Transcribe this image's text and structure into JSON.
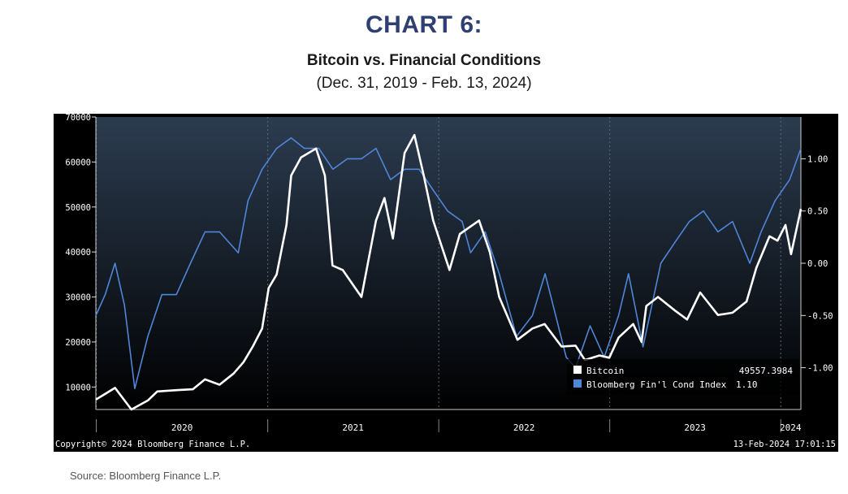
{
  "heading": "CHART 6:",
  "subtitle": "Bitcoin vs. Financial Conditions",
  "date_range": "(Dec. 31, 2019 - Feb. 13, 2024)",
  "source": "Source: Bloomberg Finance L.P.",
  "copyright": "Copyright© 2024 Bloomberg Finance L.P.",
  "timestamp": "13-Feb-2024 17:01:15",
  "colors": {
    "background": "#000000",
    "plot_gradient_top": "#2c3c50",
    "plot_gradient_bottom": "#000000",
    "bitcoin": "#ffffff",
    "fci": "#4f86d8",
    "heading": "#2e3f73"
  },
  "chart_data": {
    "type": "line",
    "title": "Bitcoin vs. Financial Conditions",
    "x_ticks": [
      "2020",
      "2021",
      "2022",
      "2023",
      "2024"
    ],
    "x_range": [
      "2019-12-31",
      "2024-02-13"
    ],
    "y_left": {
      "range": [
        5000,
        70000
      ],
      "ticks": [
        "70000",
        "60000",
        "50000",
        "40000",
        "30000",
        "20000",
        "10000"
      ]
    },
    "y_right": {
      "range": [
        -1.4,
        1.4
      ],
      "ticks": [
        "1.00",
        "0.50",
        "0.00",
        "-0.50",
        "-1.00"
      ]
    },
    "legend": {
      "placement": "bottom-right",
      "entries": [
        {
          "label": "Bitcoin",
          "value": "49557.3984"
        },
        {
          "label": "Bloomberg Fin'l Cond Index",
          "value": "1.10"
        }
      ]
    },
    "series": [
      {
        "name": "Bitcoin",
        "axis": "left",
        "x": [
          "2019-12-31",
          "2020-02-10",
          "2020-03-16",
          "2020-04-20",
          "2020-05-10",
          "2020-06-20",
          "2020-07-25",
          "2020-08-20",
          "2020-09-20",
          "2020-10-20",
          "2020-11-10",
          "2020-11-30",
          "2020-12-20",
          "2021-01-03",
          "2021-01-20",
          "2021-02-10",
          "2021-02-20",
          "2021-03-13",
          "2021-04-14",
          "2021-05-03",
          "2021-05-19",
          "2021-06-10",
          "2021-07-20",
          "2021-08-20",
          "2021-09-07",
          "2021-09-25",
          "2021-10-20",
          "2021-11-10",
          "2021-11-30",
          "2021-12-20",
          "2022-01-24",
          "2022-02-15",
          "2022-03-28",
          "2022-04-20",
          "2022-05-10",
          "2022-06-18",
          "2022-07-20",
          "2022-08-15",
          "2022-09-20",
          "2022-10-20",
          "2022-11-09",
          "2022-12-10",
          "2022-12-31",
          "2023-01-20",
          "2023-02-20",
          "2023-03-10",
          "2023-03-20",
          "2023-04-14",
          "2023-05-20",
          "2023-06-15",
          "2023-07-13",
          "2023-08-20",
          "2023-09-20",
          "2023-10-20",
          "2023-11-10",
          "2023-12-08",
          "2023-12-25",
          "2024-01-11",
          "2024-01-23",
          "2024-02-13"
        ],
        "y": [
          7200,
          9800,
          5000,
          7000,
          9000,
          9300,
          9500,
          11700,
          10500,
          13000,
          15500,
          19000,
          23000,
          32000,
          35000,
          46000,
          57000,
          61000,
          63000,
          57000,
          37000,
          36000,
          30000,
          47000,
          52000,
          43000,
          62000,
          66000,
          57000,
          47000,
          36000,
          44000,
          47000,
          40000,
          30000,
          20500,
          23000,
          24000,
          19000,
          19200,
          16000,
          17000,
          16500,
          21000,
          24000,
          20000,
          28000,
          30000,
          27000,
          25000,
          31000,
          26000,
          26500,
          29000,
          36500,
          43500,
          42500,
          46000,
          39500,
          49557
        ]
      },
      {
        "name": "Bloomberg Fin'l Cond Index",
        "axis": "right",
        "x": [
          "2019-12-31",
          "2020-01-20",
          "2020-02-10",
          "2020-03-01",
          "2020-03-23",
          "2020-04-20",
          "2020-05-20",
          "2020-06-20",
          "2020-07-20",
          "2020-08-20",
          "2020-09-20",
          "2020-10-30",
          "2020-11-20",
          "2020-12-20",
          "2021-01-20",
          "2021-02-20",
          "2021-03-20",
          "2021-04-20",
          "2021-05-20",
          "2021-06-20",
          "2021-07-20",
          "2021-08-20",
          "2021-09-20",
          "2021-10-20",
          "2021-11-20",
          "2021-12-20",
          "2022-01-20",
          "2022-02-20",
          "2022-03-10",
          "2022-04-10",
          "2022-05-10",
          "2022-06-16",
          "2022-07-20",
          "2022-08-16",
          "2022-09-30",
          "2022-10-20",
          "2022-11-20",
          "2022-12-20",
          "2023-01-20",
          "2023-02-10",
          "2023-03-13",
          "2023-04-20",
          "2023-05-20",
          "2023-06-20",
          "2023-07-20",
          "2023-08-20",
          "2023-09-20",
          "2023-10-27",
          "2023-11-20",
          "2023-12-20",
          "2024-01-20",
          "2024-02-13"
        ],
        "y": [
          -0.5,
          -0.3,
          0.0,
          -0.4,
          -1.2,
          -0.7,
          -0.3,
          -0.3,
          0.0,
          0.3,
          0.3,
          0.1,
          0.6,
          0.9,
          1.1,
          1.2,
          1.1,
          1.1,
          0.9,
          1.0,
          1.0,
          1.1,
          0.8,
          0.9,
          0.9,
          0.7,
          0.5,
          0.4,
          0.1,
          0.3,
          -0.1,
          -0.7,
          -0.5,
          -0.1,
          -0.9,
          -1.0,
          -0.6,
          -0.9,
          -0.5,
          -0.1,
          -0.8,
          0.0,
          0.2,
          0.4,
          0.5,
          0.3,
          0.4,
          0.0,
          0.3,
          0.6,
          0.8,
          1.1
        ]
      }
    ]
  }
}
